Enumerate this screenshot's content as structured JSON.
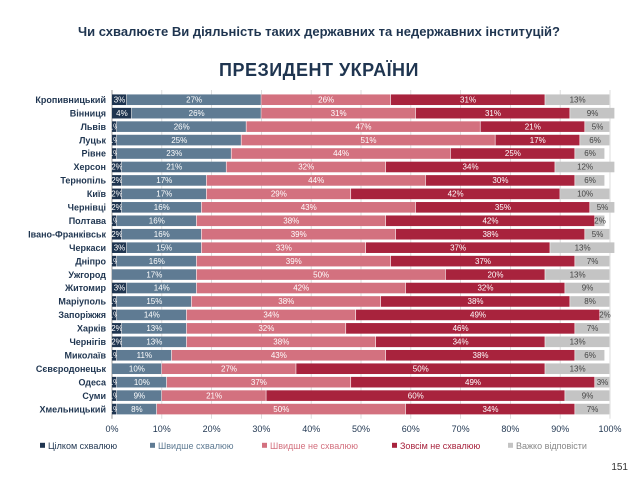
{
  "question": "Чи схвалюєте Ви діяльність таких державних та недержавних інституцій?",
  "page_number": "151",
  "chart_data": {
    "type": "bar",
    "orientation": "horizontal",
    "stacked": true,
    "title": "ПРЕЗИДЕНТ УКРАЇНИ",
    "xlim": [
      0,
      100
    ],
    "x_ticks": [
      "0%",
      "10%",
      "20%",
      "30%",
      "40%",
      "50%",
      "60%",
      "70%",
      "80%",
      "90%",
      "100%"
    ],
    "grid": true,
    "legend_position": "bottom",
    "categories": [
      "Кропивницький",
      "Вінниця",
      "Львів",
      "Луцьк",
      "Рівне",
      "Херсон",
      "Тернопіль",
      "Київ",
      "Чернівці",
      "Полтава",
      "Івано-Франківськ",
      "Черкаси",
      "Дніпро",
      "Ужгород",
      "Житомир",
      "Маріуполь",
      "Запоріжжя",
      "Харків",
      "Чернігів",
      "Миколаїв",
      "Сєвєродонецьк",
      "Одеса",
      "Суми",
      "Хмельницький"
    ],
    "series": [
      {
        "name": "Цілком схвалюю",
        "color": "#1f3550",
        "values": [
          3,
          4,
          1,
          1,
          1,
          2,
          2,
          2,
          2,
          1,
          2,
          3,
          1,
          0,
          3,
          1,
          1,
          2,
          2,
          1,
          0,
          1,
          1,
          1
        ],
        "labels": [
          "3%",
          "4%",
          "1%",
          "1%",
          "1%",
          "2%",
          "2%",
          "2%",
          "2%",
          "1%",
          "2%",
          "3%",
          "1%",
          "",
          "3%",
          "1%",
          "1%",
          "2%",
          "2%",
          "1%",
          "",
          "1%",
          "1%",
          "1%"
        ]
      },
      {
        "name": "Швидше схвалюю",
        "color": "#5f7b93",
        "values": [
          27,
          26,
          26,
          25,
          23,
          21,
          17,
          17,
          16,
          16,
          16,
          15,
          16,
          17,
          14,
          15,
          14,
          13,
          13,
          11,
          10,
          10,
          9,
          8
        ],
        "labels": [
          "27%",
          "26%",
          "26%",
          "25%",
          "23%",
          "21%",
          "17%",
          "17%",
          "16%",
          "16%",
          "16%",
          "15%",
          "16%",
          "17%",
          "14%",
          "15%",
          "14%",
          "13%",
          "13%",
          "11%",
          "10%",
          "10%",
          "9%",
          "8%"
        ]
      },
      {
        "name": "Швидше не схвалюю",
        "color": "#d3717f",
        "values": [
          26,
          31,
          47,
          51,
          44,
          32,
          44,
          29,
          43,
          38,
          39,
          33,
          39,
          50,
          42,
          38,
          34,
          32,
          38,
          43,
          27,
          37,
          21,
          50
        ],
        "labels": [
          "26%",
          "31%",
          "47%",
          "51%",
          "44%",
          "32%",
          "44%",
          "29%",
          "43%",
          "38%",
          "39%",
          "33%",
          "39%",
          "50%",
          "42%",
          "38%",
          "34%",
          "32%",
          "38%",
          "43%",
          "27%",
          "37%",
          "21%",
          "50%"
        ]
      },
      {
        "name": "Зовсім не схвалюю",
        "color": "#a8233d",
        "values": [
          31,
          31,
          21,
          17,
          25,
          34,
          30,
          42,
          35,
          42,
          38,
          37,
          37,
          20,
          32,
          38,
          49,
          46,
          34,
          38,
          50,
          49,
          60,
          34
        ],
        "labels": [
          "31%",
          "31%",
          "21%",
          "17%",
          "25%",
          "34%",
          "30%",
          "42%",
          "35%",
          "42%",
          "38%",
          "37%",
          "37%",
          "20%",
          "32%",
          "38%",
          "49%",
          "46%",
          "34%",
          "38%",
          "50%",
          "49%",
          "60%",
          "34%"
        ]
      },
      {
        "name": "Важко відповісти",
        "color": "#c4c4c4",
        "values": [
          13,
          9,
          5,
          6,
          6,
          12,
          6,
          10,
          5,
          2,
          5,
          13,
          7,
          13,
          9,
          8,
          2,
          7,
          13,
          6,
          13,
          3,
          9,
          7
        ],
        "labels": [
          "13%",
          "9%",
          "5%",
          "6%",
          "6%",
          "12%",
          "6%",
          "10%",
          "5%",
          "2%",
          "5%",
          "13%",
          "7%",
          "13%",
          "9%",
          "8%",
          "2%",
          "7%",
          "13%",
          "6%",
          "13%",
          "3%",
          "9%",
          "7%"
        ]
      }
    ]
  }
}
